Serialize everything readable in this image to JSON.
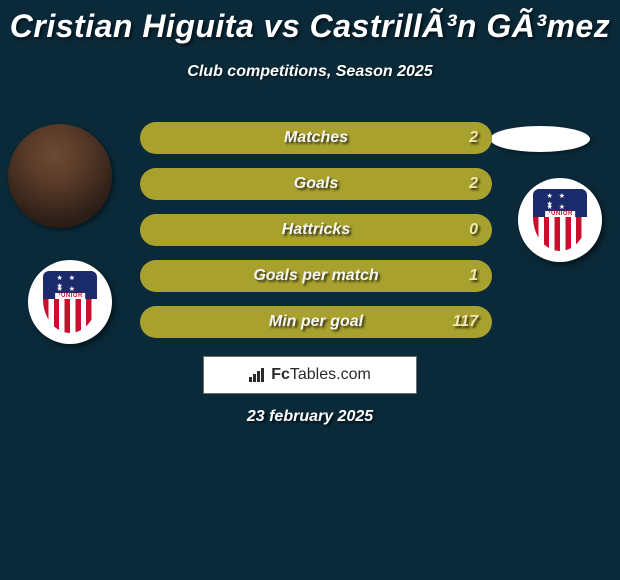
{
  "title": "Cristian Higuita vs CastrillÃ³n GÃ³mez",
  "subtitle": "Club competitions, Season 2025",
  "date": "23 february 2025",
  "brand": {
    "fc": "Fc",
    "tables": "Tables",
    "suffix": ".com"
  },
  "badge_label": "JUNIOR",
  "colors": {
    "bar_fill": "#a8a12e",
    "bar_track": "#0a2a3a",
    "bg": "#0a2a3a",
    "right_value": "#f2e7b0"
  },
  "bars": [
    {
      "label": "Matches",
      "left": "",
      "right": "2",
      "left_pct": 0,
      "right_pct": 100
    },
    {
      "label": "Goals",
      "left": "",
      "right": "2",
      "left_pct": 0,
      "right_pct": 100
    },
    {
      "label": "Hattricks",
      "left": "",
      "right": "0",
      "left_pct": 0,
      "right_pct": 100
    },
    {
      "label": "Goals per match",
      "left": "",
      "right": "1",
      "left_pct": 0,
      "right_pct": 100
    },
    {
      "label": "Min per goal",
      "left": "",
      "right": "117",
      "left_pct": 0,
      "right_pct": 100
    }
  ]
}
